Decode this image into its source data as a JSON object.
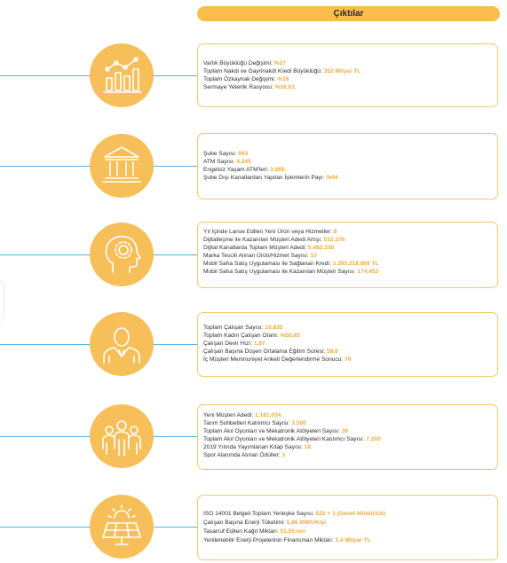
{
  "header": {
    "title": "Çıktılar"
  },
  "colors": {
    "accent": "#f7bf59",
    "value": "#f2a93b",
    "connector": "#4db3e6"
  },
  "sections": [
    {
      "icon": "growth-chart-icon",
      "lines": [
        {
          "label": "Varlık Büyüklüğü Değişimi:",
          "value": "%27"
        },
        {
          "label": "Toplam Nakdi ve Gayrinakdi Kredi Büyüklüğü:",
          "value": "352 Milyar TL"
        },
        {
          "label": "Toplam Özkaynak Değişimi:",
          "value": "%16"
        },
        {
          "label": "Sermaye Yeterlik Rasyosu:",
          "value": "%16,61"
        }
      ]
    },
    {
      "icon": "bank-building-icon",
      "lines": [
        {
          "label": "Şube Sayısı:",
          "value": "943"
        },
        {
          "label": "ATM Sayısı:",
          "value": "4.245"
        },
        {
          "label": "Engelsiz Yaşam ATM'leri:",
          "value": "3.955"
        },
        {
          "label": "Şube Dışı Kanallardan Yapılan İşlemlerin Payı:",
          "value": "%94"
        }
      ]
    },
    {
      "icon": "head-gear-icon",
      "lines": [
        {
          "label": "Yıl İçinde Lanse Edilen Yeni Ürün veya Hizmetler:",
          "value": "8"
        },
        {
          "label": "Dijitalleşme ile Kazanılan Müşteri Adedi Artışı:",
          "value": "532.276"
        },
        {
          "label": "Dijital Kanallarda Toplam Müşteri Adedi:",
          "value": "5.482.338"
        },
        {
          "label": "Marka Tescili Alınan Ürün/Hizmet Sayısı:",
          "value": "10"
        },
        {
          "label": "Mobil Saha Satış Uygulaması ile Sağlanan Kredi:",
          "value": "3.293.218.809 TL"
        },
        {
          "label": "Mobil Saha Satış Uygulaması ile Kazanılan Müşteri Sayısı:",
          "value": "174.453"
        }
      ]
    },
    {
      "icon": "employee-icon",
      "lines": [
        {
          "label": "Toplam Çalışan Sayısı:",
          "value": "16.835"
        },
        {
          "label": "Toplam Kadın Çalışan Oranı:",
          "value": "%50,85"
        },
        {
          "label": "Çalışan Devir Hızı:",
          "value": "1,87"
        },
        {
          "label": "Çalışan Başına Düşen Ortalama Eğitim Süresi:",
          "value": "58,6"
        },
        {
          "label": "İç Müşteri Memnuniyet Anketi Değerlendirme Sonucu:",
          "value": "70"
        }
      ]
    },
    {
      "icon": "people-group-icon",
      "lines": [
        {
          "label": "Yeni Müşteri Adedi:",
          "value": "1.181.034"
        },
        {
          "label": "Tarım Sohbetleri Katılımcı Sayısı:",
          "value": "3.500"
        },
        {
          "label": "Toplam Akıl Oyunları ve Mekatronik Atölyeleri Sayısı:",
          "value": "39"
        },
        {
          "label": "Toplam Akıl Oyunları ve Mekatronik Atölyeleri Katılımcı Sayısı:",
          "value": "7.200"
        },
        {
          "label": "2019 Yılında Yayımlanan Kitap Sayısı:",
          "value": "18"
        },
        {
          "label": "Spor Alanında Alınan Ödüller:",
          "value": "3"
        }
      ]
    },
    {
      "icon": "solar-panel-icon",
      "lines": [
        {
          "label": "ISO 14001 Belgeli Toplam Yerleşke Sayısı:",
          "value": "522 + 1 (Genel Müdürlük)"
        },
        {
          "label": "Çalışan Başına Enerji Tüketimi:",
          "value": "5,86 MWh/Kişi"
        },
        {
          "label": "Tasarruf Edilen Kağıt Miktarı:",
          "value": "51,55 ton"
        },
        {
          "label": "Yenilenebilir Enerji Projelerinin Finansman Miktarı:",
          "value": "1,4 Milyar TL"
        }
      ]
    }
  ]
}
